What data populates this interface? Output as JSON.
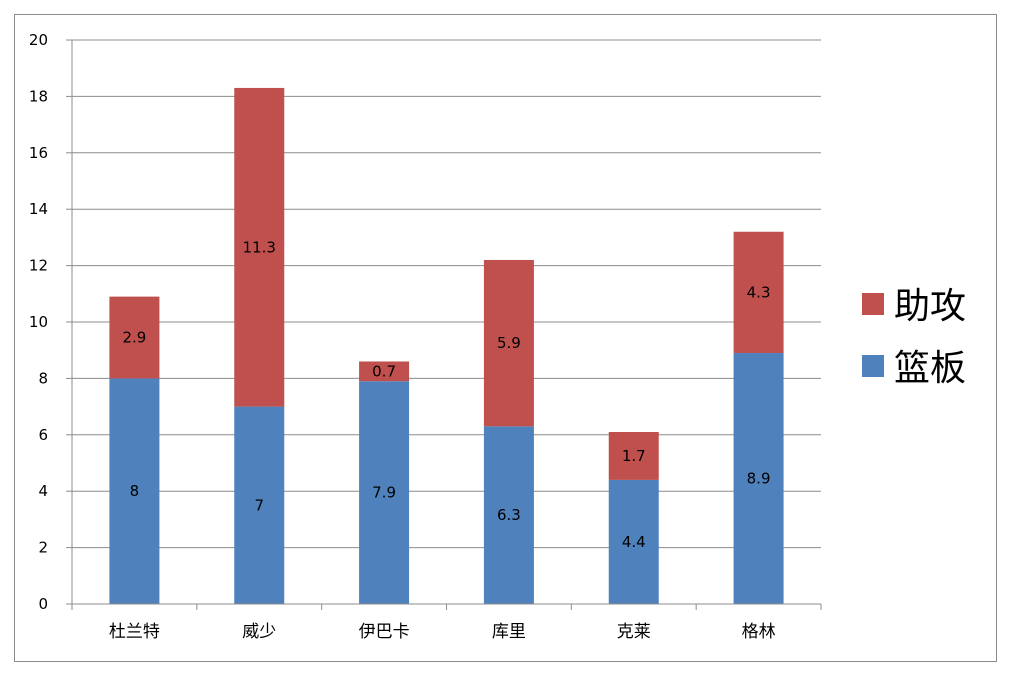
{
  "chart_data": {
    "type": "bar",
    "stacked": true,
    "categories": [
      "杜兰特",
      "威少",
      "伊巴卡",
      "库里",
      "克莱",
      "格林"
    ],
    "series": [
      {
        "name": "篮板",
        "values": [
          8,
          7,
          7.9,
          6.3,
          4.4,
          8.9
        ],
        "color": "#4f81bd"
      },
      {
        "name": "助攻",
        "values": [
          2.9,
          11.3,
          0.7,
          5.9,
          1.7,
          4.3
        ],
        "color": "#c0504d"
      }
    ],
    "data_labels": [
      [
        "8",
        "7",
        "7.9",
        "6.3",
        "4.4",
        "8.9"
      ],
      [
        "2.9",
        "11.3",
        "0.7",
        "5.9",
        "1.7",
        "4.3"
      ]
    ],
    "ylim": [
      0,
      20
    ],
    "yticks": [
      "0",
      "2",
      "4",
      "6",
      "8",
      "10",
      "12",
      "14",
      "16",
      "18",
      "20"
    ],
    "grid": true,
    "legend_position": "right",
    "title": "",
    "xlabel": "",
    "ylabel": ""
  }
}
